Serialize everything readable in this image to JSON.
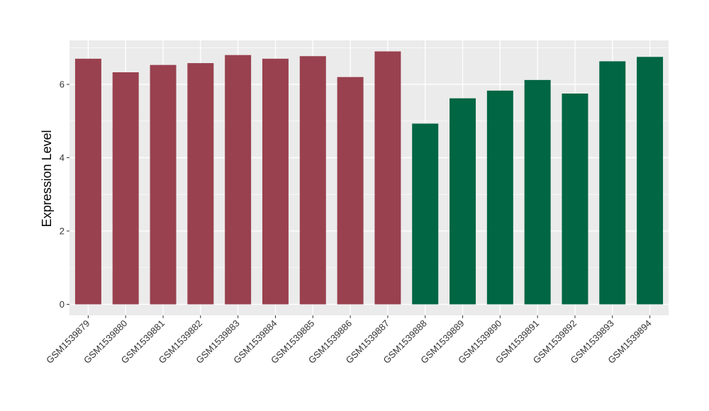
{
  "chart_data": {
    "type": "bar",
    "title": "",
    "xlabel": "",
    "ylabel": "Expression Level",
    "ylim": [
      -0.3,
      7.2
    ],
    "yticks": [
      0,
      2,
      4,
      6
    ],
    "grid": true,
    "legend": "none",
    "categories": [
      "GSM1539879",
      "GSM1539880",
      "GSM1539881",
      "GSM1539882",
      "GSM1539883",
      "GSM1539884",
      "GSM1539885",
      "GSM1539886",
      "GSM1539887",
      "GSM1539888",
      "GSM1539889",
      "GSM1539890",
      "GSM1539891",
      "GSM1539892",
      "GSM1539893",
      "GSM1539894"
    ],
    "values": [
      6.7,
      6.33,
      6.53,
      6.58,
      6.8,
      6.7,
      6.77,
      6.2,
      6.9,
      4.93,
      5.62,
      5.83,
      6.12,
      5.75,
      6.63,
      6.75
    ],
    "group": [
      0,
      0,
      0,
      0,
      0,
      0,
      0,
      0,
      0,
      1,
      1,
      1,
      1,
      1,
      1,
      1
    ],
    "group_colors": [
      "#99414F",
      "#006643"
    ],
    "panel_background": "#EBEBEB",
    "grid_color": "#FFFFFF"
  }
}
